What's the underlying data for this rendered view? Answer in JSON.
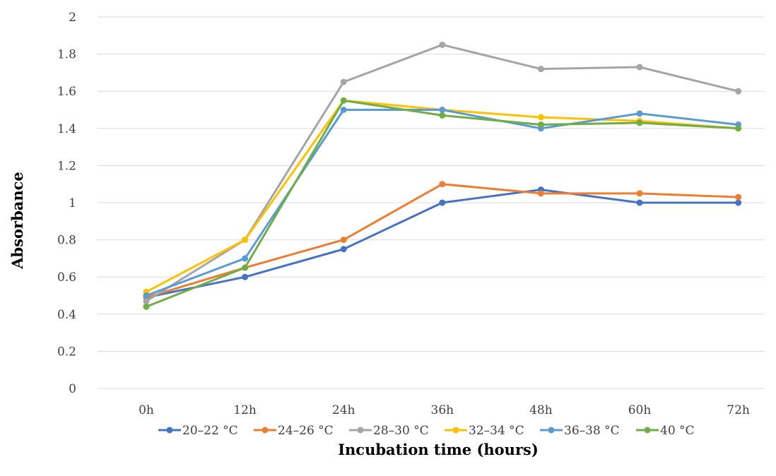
{
  "chart_data": {
    "type": "line",
    "title": "",
    "xlabel": "Incubation time (hours)",
    "ylabel": "Absorbance",
    "categories": [
      "0h",
      "12h",
      "24h",
      "36h",
      "48h",
      "60h",
      "72h"
    ],
    "ylim": [
      0,
      2
    ],
    "yticks": [
      "0",
      "0.2",
      "0.4",
      "0.6",
      "0.8",
      "1",
      "1.2",
      "1.4",
      "1.6",
      "1.8",
      "2"
    ],
    "grid": true,
    "legend_position": "bottom",
    "series": [
      {
        "name": "20–22 °C",
        "color": "#4472c4",
        "values": [
          0.49,
          0.6,
          0.75,
          1.0,
          1.07,
          1.0,
          1.0
        ]
      },
      {
        "name": "24–26 °C",
        "color": "#ed7d31",
        "values": [
          0.49,
          0.65,
          0.8,
          1.1,
          1.05,
          1.05,
          1.03
        ]
      },
      {
        "name": "28–30 °C",
        "color": "#a5a5a5",
        "values": [
          0.47,
          0.8,
          1.65,
          1.85,
          1.72,
          1.73,
          1.6
        ]
      },
      {
        "name": "32–34 °C",
        "color": "#ffc000",
        "values": [
          0.52,
          0.8,
          1.55,
          1.5,
          1.46,
          1.44,
          1.4
        ]
      },
      {
        "name": "36–38 °C",
        "color": "#5b9bd5",
        "values": [
          0.5,
          0.7,
          1.5,
          1.5,
          1.4,
          1.48,
          1.42
        ]
      },
      {
        "name": "40 °C",
        "color": "#70ad47",
        "values": [
          0.44,
          0.65,
          1.55,
          1.47,
          1.42,
          1.43,
          1.4
        ]
      }
    ]
  }
}
